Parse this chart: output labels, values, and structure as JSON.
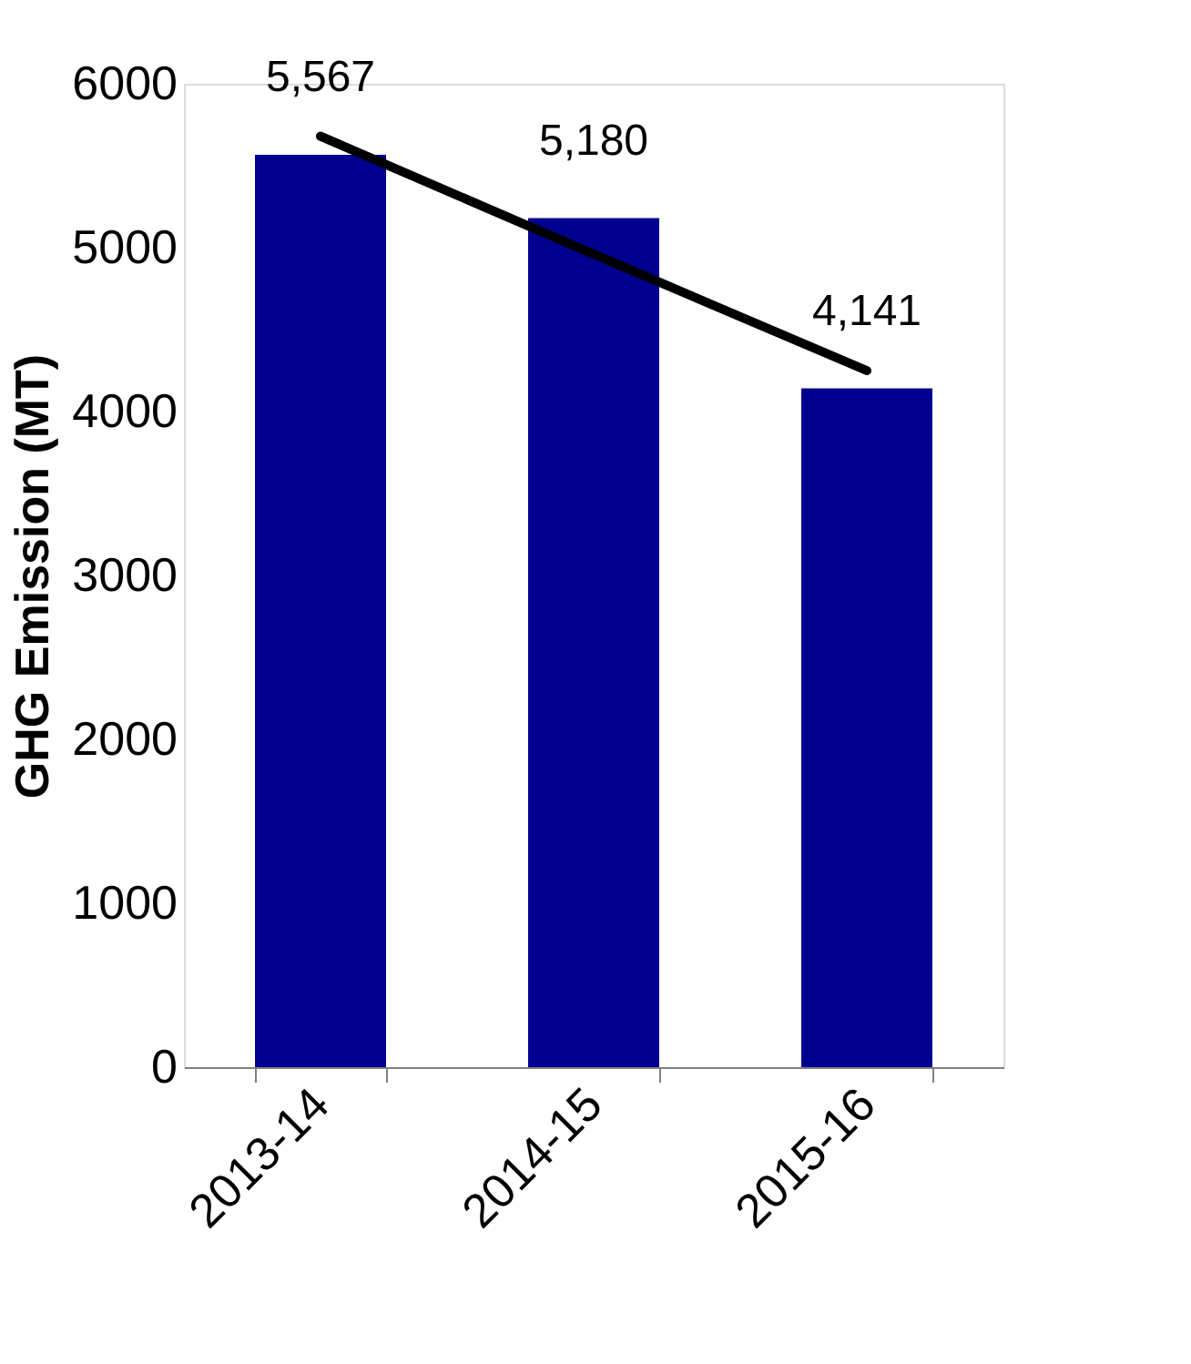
{
  "chart_data": {
    "type": "bar",
    "ylabel": "GHG Emission (MT)",
    "categories": [
      "2013-14",
      "2014-15",
      "2015-16"
    ],
    "series": [
      {
        "color": "#000090",
        "values": [
          5567,
          5180,
          4141
        ],
        "value_labels": [
          "5,567",
          "5,180",
          "4,141"
        ]
      },
      {
        "type": "line",
        "color": "#000000",
        "values": [
          5680,
          4960,
          4250
        ]
      }
    ],
    "ylim": [
      0,
      6000
    ],
    "yticks": [
      0,
      1000,
      2000,
      3000,
      4000,
      5000,
      6000
    ],
    "grid": false
  }
}
